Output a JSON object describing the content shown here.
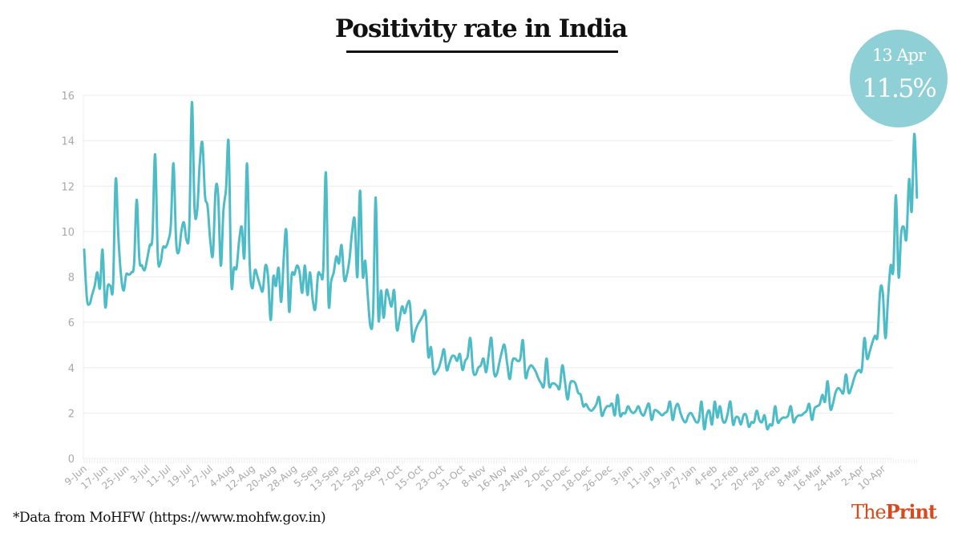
{
  "title": "Positivity rate in India",
  "badge": {
    "date": "13 Apr",
    "value": "11.5%",
    "color": "#8fd0d6"
  },
  "footer": "*Data from MoHFW (https://www.mohfw.gov.in)",
  "brand": {
    "prefix": "The",
    "suffix": "Print",
    "color": "#d64a1f"
  },
  "chart_data": {
    "type": "line",
    "title": "Positivity rate in India",
    "xlabel": "",
    "ylabel": "",
    "ylim": [
      0,
      16
    ],
    "yticks": [
      0,
      2,
      4,
      6,
      8,
      10,
      12,
      14,
      16
    ],
    "grid": true,
    "line_color": "#4dbcc6",
    "start_date": "9-Jun",
    "end_date": "13-Apr",
    "xtick_labels": [
      "9-Jun",
      "17-Jun",
      "25-Jun",
      "3-Jul",
      "11-Jul",
      "19-Jul",
      "27-Jul",
      "4-Aug",
      "12-Aug",
      "20-Aug",
      "28-Aug",
      "5-Sep",
      "13-Sep",
      "21-Sep",
      "29-Sep",
      "7-Oct",
      "15-Oct",
      "23-Oct",
      "31-Oct",
      "8-Nov",
      "16-Nov",
      "24-Nov",
      "2-Dec",
      "10-Dec",
      "18-Dec",
      "26-Dec",
      "3-Jan",
      "11-Jan",
      "19-Jan",
      "27-Jan",
      "4-Feb",
      "12-Feb",
      "20-Feb",
      "28-Feb",
      "8-Mar",
      "16-Mar",
      "24-Mar",
      "2-Apr",
      "10-Apr"
    ],
    "xtick_interval_days": 8,
    "series": [
      {
        "name": "Positivity rate (%)",
        "values": [
          9.2,
          7.1,
          6.8,
          7.2,
          7.6,
          8.2,
          7.5,
          9.2,
          6.7,
          7.6,
          7.6,
          7.6,
          12.3,
          9.8,
          8.1,
          7.4,
          8.1,
          8.1,
          8.2,
          8.6,
          11.4,
          8.8,
          8.5,
          8.3,
          8.8,
          9.4,
          9.8,
          13.4,
          9.0,
          8.6,
          9.3,
          9.3,
          9.6,
          10.3,
          13.0,
          9.6,
          9.1,
          10.0,
          10.4,
          9.6,
          10.2,
          15.7,
          11.1,
          10.9,
          13.0,
          13.9,
          11.6,
          11.1,
          9.6,
          9.0,
          11.8,
          11.6,
          8.5,
          10.9,
          11.9,
          13.9,
          7.8,
          8.4,
          8.4,
          9.6,
          10.2,
          8.9,
          13.0,
          8.6,
          7.5,
          8.3,
          8.0,
          7.6,
          7.4,
          8.5,
          8.0,
          6.1,
          8.0,
          7.6,
          8.4,
          6.9,
          8.9,
          10.0,
          6.5,
          8.1,
          8.1,
          8.5,
          8.2,
          7.3,
          8.5,
          7.2,
          8.2,
          7.0,
          6.6,
          8.1,
          8.1,
          8.3,
          12.6,
          6.9,
          7.8,
          8.2,
          8.9,
          8.6,
          9.4,
          7.9,
          8.1,
          8.8,
          10.0,
          10.5,
          8.0,
          11.8,
          8.1,
          8.7,
          7.1,
          5.8,
          6.5,
          11.5,
          6.2,
          7.4,
          6.2,
          7.4,
          7.1,
          6.7,
          7.4,
          5.7,
          6.1,
          6.7,
          6.4,
          6.8,
          6.8,
          5.2,
          5.6,
          5.9,
          6.1,
          6.3,
          6.4,
          4.5,
          4.9,
          3.8,
          3.8,
          4.0,
          4.4,
          4.8,
          3.9,
          4.2,
          4.5,
          4.5,
          4.3,
          4.6,
          3.9,
          4.3,
          4.5,
          5.3,
          3.9,
          3.7,
          4.0,
          4.1,
          4.4,
          3.8,
          4.6,
          5.3,
          3.8,
          3.7,
          4.2,
          4.7,
          5.0,
          4.2,
          3.5,
          4.3,
          4.4,
          4.3,
          4.4,
          5.2,
          3.6,
          3.9,
          4.1,
          4.0,
          3.8,
          3.5,
          3.3,
          3.2,
          4.4,
          3.2,
          3.3,
          3.3,
          3.2,
          3.1,
          4.1,
          3.4,
          2.6,
          3.3,
          3.4,
          3.3,
          2.9,
          2.8,
          2.3,
          2.4,
          2.2,
          2.1,
          2.2,
          2.4,
          2.7,
          1.9,
          2.1,
          2.3,
          2.3,
          2.4,
          1.9,
          2.8,
          1.9,
          2.0,
          2.0,
          2.3,
          2.1,
          2.0,
          2.1,
          2.3,
          2.0,
          1.9,
          2.2,
          2.4,
          1.7,
          2.1,
          2.1,
          2.0,
          1.9,
          2.0,
          2.1,
          2.5,
          1.7,
          2.2,
          2.4,
          2.0,
          1.7,
          1.6,
          1.9,
          2.0,
          1.8,
          1.6,
          1.7,
          2.5,
          1.3,
          1.9,
          2.1,
          1.5,
          2.5,
          1.8,
          2.3,
          1.7,
          1.6,
          2.0,
          2.5,
          1.5,
          1.8,
          1.8,
          1.5,
          1.9,
          1.9,
          1.4,
          1.6,
          1.6,
          2.1,
          1.7,
          1.6,
          1.9,
          1.3,
          1.5,
          1.5,
          2.3,
          1.6,
          1.7,
          1.8,
          1.8,
          1.9,
          2.3,
          1.6,
          1.8,
          1.9,
          1.9,
          2.0,
          2.1,
          2.4,
          1.7,
          2.2,
          2.3,
          2.4,
          2.8,
          2.5,
          3.4,
          2.2,
          2.4,
          2.9,
          3.1,
          3.0,
          2.9,
          3.7,
          2.9,
          3.1,
          3.5,
          3.8,
          3.9,
          3.9,
          5.3,
          4.4,
          4.7,
          5.1,
          5.4,
          5.4,
          7.4,
          7.3,
          5.3,
          7.1,
          8.5,
          8.3,
          11.6,
          8.0,
          9.9,
          10.2,
          9.7,
          12.3,
          10.9,
          14.3,
          11.5
        ]
      }
    ]
  }
}
